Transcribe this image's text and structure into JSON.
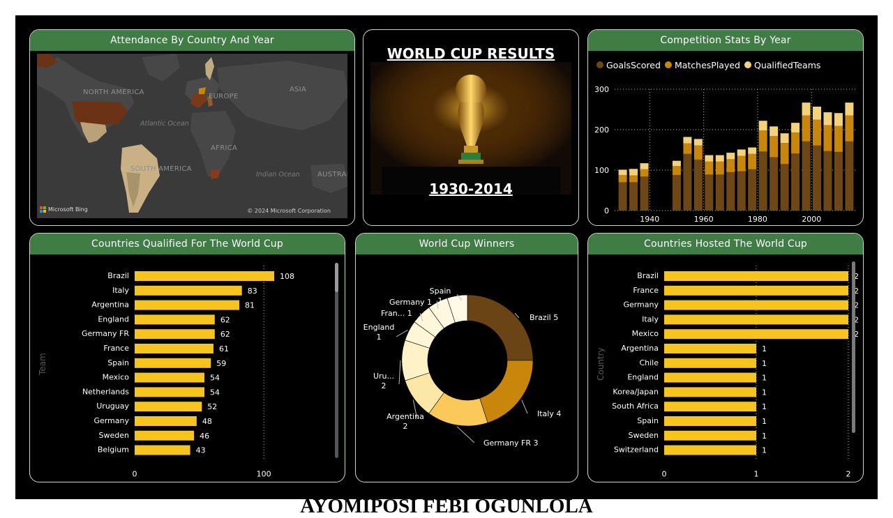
{
  "map_panel": {
    "title": "Attendance By Country And Year",
    "labels": {
      "north_america": "NORTH AMERICA",
      "europe": "EUROPE",
      "asia": "ASIA",
      "atlantic": "Atlantic Ocean",
      "africa": "AFRICA",
      "south_america": "SOUTH AMERICA",
      "indian": "Indian Ocean",
      "austral": "AUSTRAL"
    },
    "bing": "Microsoft Bing",
    "copyright": "© 2024 Microsoft Corporation"
  },
  "center_panel": {
    "title": "WORLD CUP RESULTS",
    "years": "1930-2014"
  },
  "stats_panel": {
    "title": "Competition Stats By Year",
    "chart_data": {
      "type": "bar",
      "stacked": true,
      "x": [
        1930,
        1934,
        1938,
        1950,
        1954,
        1958,
        1962,
        1966,
        1970,
        1974,
        1978,
        1982,
        1986,
        1990,
        1994,
        1998,
        2002,
        2006,
        2010,
        2014
      ],
      "series": [
        {
          "name": "GoalsScored",
          "color": "#6e4716",
          "values": [
            70,
            70,
            84,
            88,
            140,
            126,
            89,
            89,
            95,
            97,
            102,
            146,
            132,
            115,
            141,
            171,
            161,
            147,
            145,
            171
          ]
        },
        {
          "name": "MatchesPlayed",
          "color": "#c8870b",
          "values": [
            18,
            17,
            18,
            22,
            26,
            35,
            32,
            32,
            32,
            38,
            38,
            52,
            52,
            52,
            52,
            64,
            64,
            64,
            64,
            64
          ]
        },
        {
          "name": "QualifiedTeams",
          "color": "#f3d27a",
          "values": [
            13,
            16,
            15,
            13,
            16,
            16,
            16,
            16,
            16,
            16,
            16,
            24,
            24,
            24,
            24,
            32,
            32,
            32,
            32,
            32
          ]
        }
      ],
      "xticks": [
        1940,
        1960,
        1980,
        2000
      ],
      "yticks": [
        0,
        100,
        200,
        300
      ],
      "ylim": [
        0,
        300
      ]
    }
  },
  "qualified_panel": {
    "title": "Countries Qualified For The World Cup",
    "axis_label": "Team",
    "chart_data": {
      "type": "bar",
      "orientation": "horizontal",
      "categories": [
        "Brazil",
        "Italy",
        "Argentina",
        "England",
        "Germany FR",
        "France",
        "Spain",
        "Mexico",
        "Netherlands",
        "Uruguay",
        "Germany",
        "Sweden",
        "Belgium"
      ],
      "values": [
        108,
        83,
        81,
        62,
        62,
        61,
        59,
        54,
        54,
        52,
        48,
        46,
        43
      ],
      "xticks": [
        0,
        100
      ],
      "xlim": [
        0,
        108
      ],
      "color": "#f6c41c"
    }
  },
  "winners_panel": {
    "title": "World Cup Winners",
    "chart_data": {
      "type": "pie",
      "donut": true,
      "slices": [
        {
          "label": "Brazil",
          "value": 5,
          "color": "#6a4415",
          "text": "Brazil 5"
        },
        {
          "label": "Italy",
          "value": 4,
          "color": "#c8870b",
          "text": "Italy 4"
        },
        {
          "label": "Germany FR",
          "value": 3,
          "color": "#fbc95a",
          "text": "Germany FR 3"
        },
        {
          "label": "Argentina",
          "value": 2,
          "color": "#fde7a6",
          "text": "Argentina",
          "text2": "2"
        },
        {
          "label": "Uruguay",
          "value": 2,
          "color": "#fff2c7",
          "text": "Uru...",
          "text2": "2"
        },
        {
          "label": "England",
          "value": 1,
          "color": "#fff6d8",
          "text": "England",
          "text2": "1"
        },
        {
          "label": "France",
          "value": 1,
          "color": "#fff7dc",
          "text": "Fran...  1"
        },
        {
          "label": "Germany",
          "value": 1,
          "color": "#fff8e0",
          "text": "Germany 1"
        },
        {
          "label": "Spain",
          "value": 1,
          "color": "#fff9e5",
          "text": "Spain",
          "text2": "1"
        }
      ]
    }
  },
  "hosted_panel": {
    "title": "Countries Hosted The World Cup",
    "axis_label": "Country",
    "chart_data": {
      "type": "bar",
      "orientation": "horizontal",
      "categories": [
        "Brazil",
        "France",
        "Germany",
        "Italy",
        "Mexico",
        "Argentina",
        "Chile",
        "England",
        "Korea/Japan",
        "South Africa",
        "Spain",
        "Sweden",
        "Switzerland"
      ],
      "values": [
        2,
        2,
        2,
        2,
        2,
        1,
        1,
        1,
        1,
        1,
        1,
        1,
        1
      ],
      "xticks": [
        0,
        1,
        2
      ],
      "xlim": [
        0,
        2
      ],
      "color": "#f6c41c"
    }
  },
  "footer": "AYOMIPOSI FEBI OGUNLOLA"
}
